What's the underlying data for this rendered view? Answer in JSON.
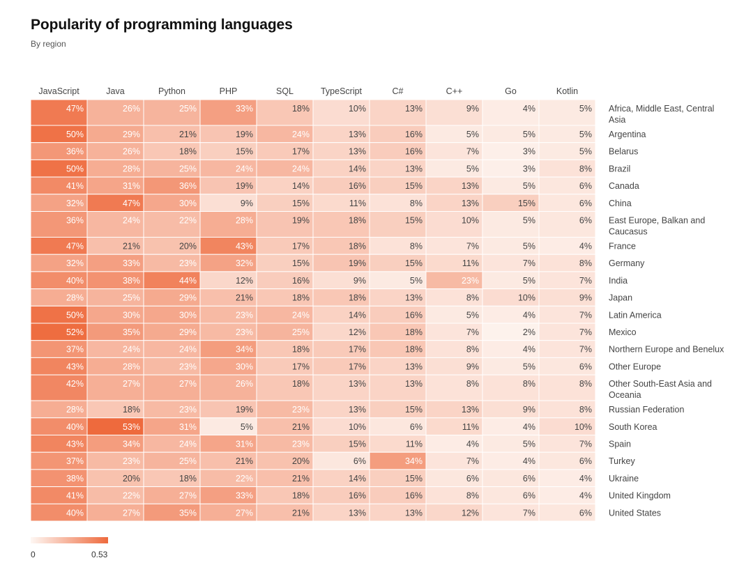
{
  "header": {
    "title": "Popularity of programming languages",
    "subtitle": "By region"
  },
  "legend": {
    "min_label": "0",
    "max_label": "0.53"
  },
  "colors": {
    "scale_low": "#fef7f3",
    "scale_high": "#ee6a3d",
    "text_dark": "#444444",
    "text_light": "#ffffff",
    "cell_border": "#ffffff"
  },
  "chart_data": {
    "type": "heatmap",
    "title": "Popularity of programming languages",
    "subtitle": "By region",
    "color_range": [
      0,
      0.53
    ],
    "columns": [
      "JavaScript",
      "Java",
      "Python",
      "PHP",
      "SQL",
      "TypeScript",
      "C#",
      "C++",
      "Go",
      "Kotlin"
    ],
    "rows": [
      {
        "label": "Africa, Middle East, Central Asia",
        "values": [
          0.47,
          0.26,
          0.25,
          0.33,
          0.18,
          0.1,
          0.13,
          0.09,
          0.04,
          0.05
        ]
      },
      {
        "label": "Argentina",
        "values": [
          0.5,
          0.29,
          0.21,
          0.19,
          0.24,
          0.13,
          0.16,
          0.05,
          0.05,
          0.05
        ]
      },
      {
        "label": "Belarus",
        "values": [
          0.36,
          0.26,
          0.18,
          0.15,
          0.17,
          0.13,
          0.16,
          0.07,
          0.03,
          0.05
        ]
      },
      {
        "label": "Brazil",
        "values": [
          0.5,
          0.28,
          0.25,
          0.24,
          0.24,
          0.14,
          0.13,
          0.05,
          0.03,
          0.08
        ]
      },
      {
        "label": "Canada",
        "values": [
          0.41,
          0.31,
          0.36,
          0.19,
          0.14,
          0.16,
          0.15,
          0.13,
          0.05,
          0.06
        ]
      },
      {
        "label": "China",
        "values": [
          0.32,
          0.47,
          0.3,
          0.09,
          0.15,
          0.11,
          0.08,
          0.13,
          0.15,
          0.06
        ]
      },
      {
        "label": "East Europe, Balkan and Caucasus",
        "values": [
          0.36,
          0.24,
          0.22,
          0.28,
          0.19,
          0.18,
          0.15,
          0.1,
          0.05,
          0.06
        ]
      },
      {
        "label": "France",
        "values": [
          0.47,
          0.21,
          0.2,
          0.43,
          0.17,
          0.18,
          0.08,
          0.07,
          0.05,
          0.04
        ]
      },
      {
        "label": "Germany",
        "values": [
          0.32,
          0.33,
          0.23,
          0.32,
          0.15,
          0.19,
          0.15,
          0.11,
          0.07,
          0.08
        ]
      },
      {
        "label": "India",
        "values": [
          0.4,
          0.38,
          0.44,
          0.12,
          0.16,
          0.09,
          0.05,
          0.23,
          0.05,
          0.07
        ]
      },
      {
        "label": "Japan",
        "values": [
          0.28,
          0.25,
          0.29,
          0.21,
          0.18,
          0.18,
          0.13,
          0.08,
          0.1,
          0.09
        ]
      },
      {
        "label": "Latin America",
        "values": [
          0.5,
          0.3,
          0.3,
          0.23,
          0.24,
          0.14,
          0.16,
          0.05,
          0.04,
          0.07
        ]
      },
      {
        "label": "Mexico",
        "values": [
          0.52,
          0.35,
          0.29,
          0.23,
          0.25,
          0.12,
          0.18,
          0.07,
          0.02,
          0.07
        ]
      },
      {
        "label": "Northern Europe and Benelux",
        "values": [
          0.37,
          0.24,
          0.24,
          0.34,
          0.18,
          0.17,
          0.18,
          0.08,
          0.04,
          0.07
        ]
      },
      {
        "label": "Other Europe",
        "values": [
          0.43,
          0.28,
          0.23,
          0.3,
          0.17,
          0.17,
          0.13,
          0.09,
          0.05,
          0.06
        ]
      },
      {
        "label": "Other South-East Asia and Oceania",
        "values": [
          0.42,
          0.27,
          0.27,
          0.26,
          0.18,
          0.13,
          0.13,
          0.08,
          0.08,
          0.08
        ]
      },
      {
        "label": "Russian Federation",
        "values": [
          0.28,
          0.18,
          0.23,
          0.19,
          0.23,
          0.13,
          0.15,
          0.13,
          0.09,
          0.08
        ]
      },
      {
        "label": "South Korea",
        "values": [
          0.4,
          0.53,
          0.31,
          0.05,
          0.21,
          0.1,
          0.06,
          0.11,
          0.04,
          0.1
        ]
      },
      {
        "label": "Spain",
        "values": [
          0.43,
          0.34,
          0.24,
          0.31,
          0.23,
          0.15,
          0.11,
          0.04,
          0.05,
          0.07
        ]
      },
      {
        "label": "Turkey",
        "values": [
          0.37,
          0.23,
          0.25,
          0.21,
          0.2,
          0.06,
          0.34,
          0.07,
          0.04,
          0.06
        ]
      },
      {
        "label": "Ukraine",
        "values": [
          0.38,
          0.2,
          0.18,
          0.22,
          0.21,
          0.14,
          0.15,
          0.06,
          0.06,
          0.04
        ]
      },
      {
        "label": "United Kingdom",
        "values": [
          0.41,
          0.22,
          0.27,
          0.33,
          0.18,
          0.16,
          0.16,
          0.08,
          0.06,
          0.04
        ]
      },
      {
        "label": "United States",
        "values": [
          0.4,
          0.27,
          0.35,
          0.27,
          0.21,
          0.13,
          0.13,
          0.12,
          0.07,
          0.06
        ]
      }
    ]
  }
}
